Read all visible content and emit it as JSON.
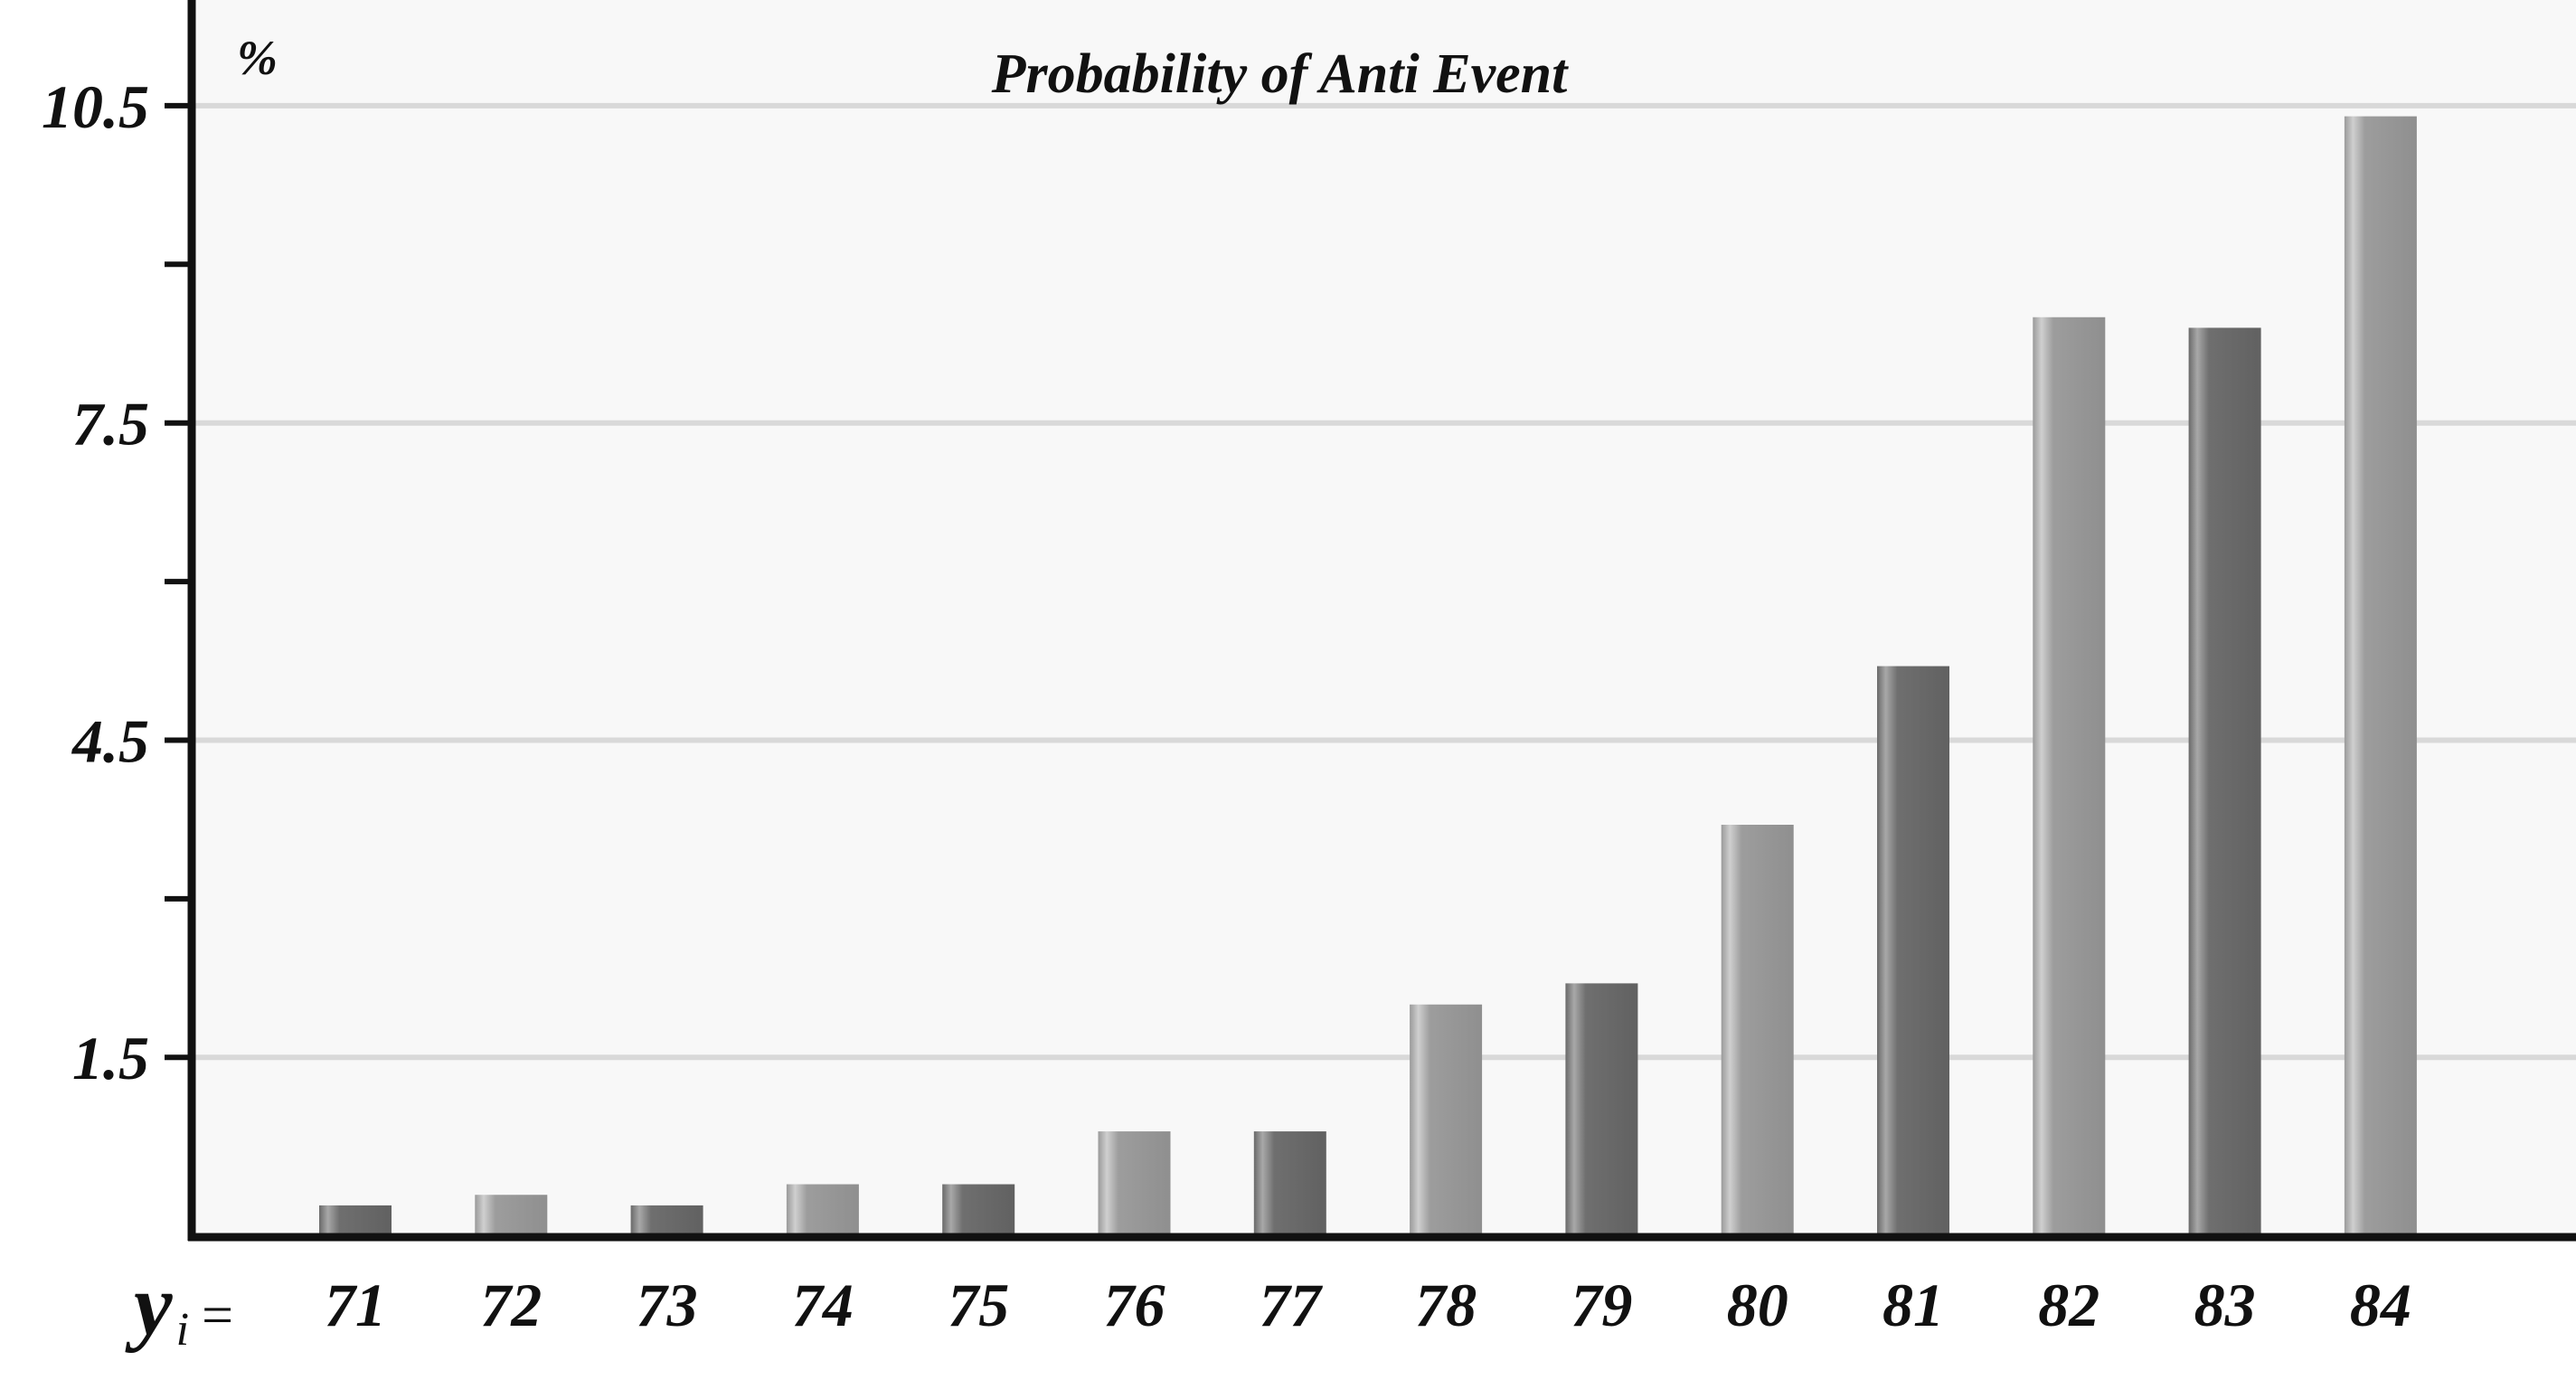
{
  "chart_data": {
    "type": "bar",
    "title": "Probability of Anti Event",
    "ylabel": "%",
    "xlabel_prefix": "y",
    "xlabel_subscript": "i",
    "xlabel_suffix": "=",
    "categories": [
      "71",
      "72",
      "73",
      "74",
      "75",
      "76",
      "77",
      "78",
      "79",
      "80",
      "81",
      "82",
      "83",
      "84"
    ],
    "values": [
      0.1,
      0.2,
      0.1,
      0.3,
      0.3,
      0.8,
      0.8,
      2.0,
      2.2,
      3.7,
      5.2,
      8.5,
      8.4,
      10.4
    ],
    "ylim": [
      -0.2,
      11.5
    ],
    "yticks": [
      1.5,
      4.5,
      7.5,
      10.5
    ],
    "ytick_labels": [
      "1.5",
      "4.5",
      "7.5",
      "10.5"
    ],
    "minor_yticks": [
      3.0,
      6.0,
      9.0
    ],
    "grid": true,
    "colors": {
      "background": "#f8f8f8",
      "grid": "#d9d9d9",
      "axis": "#111111",
      "bar_light": "#939393",
      "bar_dark": "#666666"
    },
    "bar_shades": [
      "dark",
      "light",
      "dark",
      "light",
      "dark",
      "light",
      "dark",
      "light",
      "dark",
      "light",
      "dark",
      "light",
      "dark",
      "light"
    ]
  }
}
